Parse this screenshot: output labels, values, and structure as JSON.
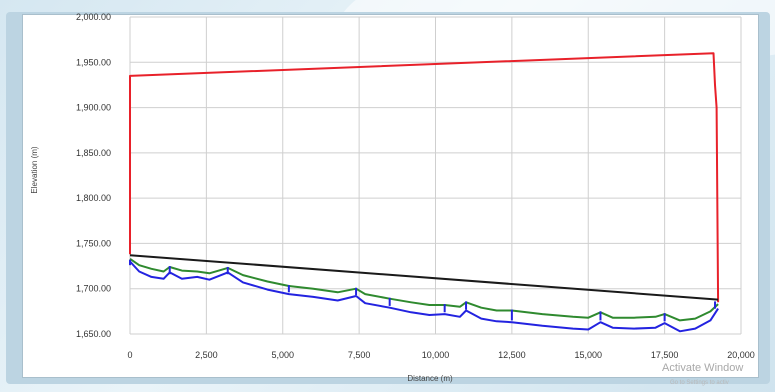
{
  "chart_data": {
    "type": "line",
    "xlabel": "Distance (m)",
    "ylabel": "Elevation (m)",
    "xlim": [
      0,
      20000
    ],
    "ylim": [
      1650,
      2000
    ],
    "x_ticks": [
      "0",
      "2,500",
      "5,000",
      "7,500",
      "10,000",
      "12,500",
      "15,000",
      "17,500",
      "20,000"
    ],
    "y_ticks": [
      "1,650.00",
      "1,700.00",
      "1,750.00",
      "1,800.00",
      "1,850.00",
      "1,900.00",
      "1,950.00",
      "2,000.00"
    ],
    "grid": true,
    "series": [
      {
        "color": "#e8212a",
        "x": [
          0,
          0,
          19100,
          19150,
          19200,
          19250
        ],
        "y": [
          1738,
          1935,
          1960,
          1925,
          1900,
          1685
        ]
      },
      {
        "color": "#1a1a1a",
        "x": [
          0,
          19250
        ],
        "y": [
          1737,
          1688
        ]
      },
      {
        "color": "#2f8a2f",
        "x": [
          0,
          300,
          700,
          1100,
          1300,
          1700,
          2200,
          2600,
          3200,
          3700,
          4500,
          5200,
          6000,
          6800,
          7400,
          7700,
          8500,
          9200,
          9800,
          10300,
          10800,
          11000,
          11500,
          12000,
          12500,
          13500,
          14500,
          15000,
          15400,
          15800,
          16500,
          17200,
          17500,
          18000,
          18500,
          19000,
          19250
        ],
        "y": [
          1733,
          1726,
          1722,
          1719,
          1724,
          1720,
          1719,
          1717,
          1723,
          1715,
          1708,
          1703,
          1700,
          1696,
          1700,
          1694,
          1689,
          1685,
          1682,
          1682,
          1680,
          1685,
          1679,
          1676,
          1676,
          1672,
          1669,
          1668,
          1674,
          1668,
          1668,
          1669,
          1672,
          1665,
          1667,
          1675,
          1683
        ]
      },
      {
        "color": "#2323e0",
        "x": [
          0,
          300,
          700,
          1100,
          1300,
          1700,
          2200,
          2600,
          3200,
          3700,
          4500,
          5200,
          6000,
          6800,
          7400,
          7700,
          8500,
          9200,
          9800,
          10300,
          10800,
          11000,
          11500,
          12000,
          12500,
          13500,
          14500,
          15000,
          15400,
          15800,
          16500,
          17200,
          17500,
          18000,
          18500,
          19000,
          19250
        ],
        "y": [
          1730,
          1719,
          1713,
          1711,
          1718,
          1711,
          1713,
          1710,
          1718,
          1707,
          1699,
          1694,
          1691,
          1687,
          1692,
          1684,
          1679,
          1674,
          1671,
          1672,
          1669,
          1676,
          1667,
          1664,
          1663,
          1659,
          1656,
          1655,
          1663,
          1657,
          1656,
          1657,
          1662,
          1653,
          1656,
          1665,
          1678
        ]
      }
    ],
    "markers": {
      "color": "#2323e0",
      "x": [
        0,
        1300,
        3200,
        5200,
        7400,
        8500,
        10300,
        11000,
        12500,
        15400,
        17500,
        19150
      ],
      "y_top": [
        1732,
        1725,
        1724,
        1704,
        1701,
        1690,
        1683,
        1686,
        1677,
        1675,
        1673,
        1686
      ],
      "y_bottom": [
        1726,
        1716,
        1716,
        1696,
        1693,
        1681,
        1674,
        1677,
        1665,
        1665,
        1664,
        1678
      ]
    }
  },
  "watermark": {
    "title": "Activate Window",
    "subtitle": "Go to Settings to activ"
  }
}
